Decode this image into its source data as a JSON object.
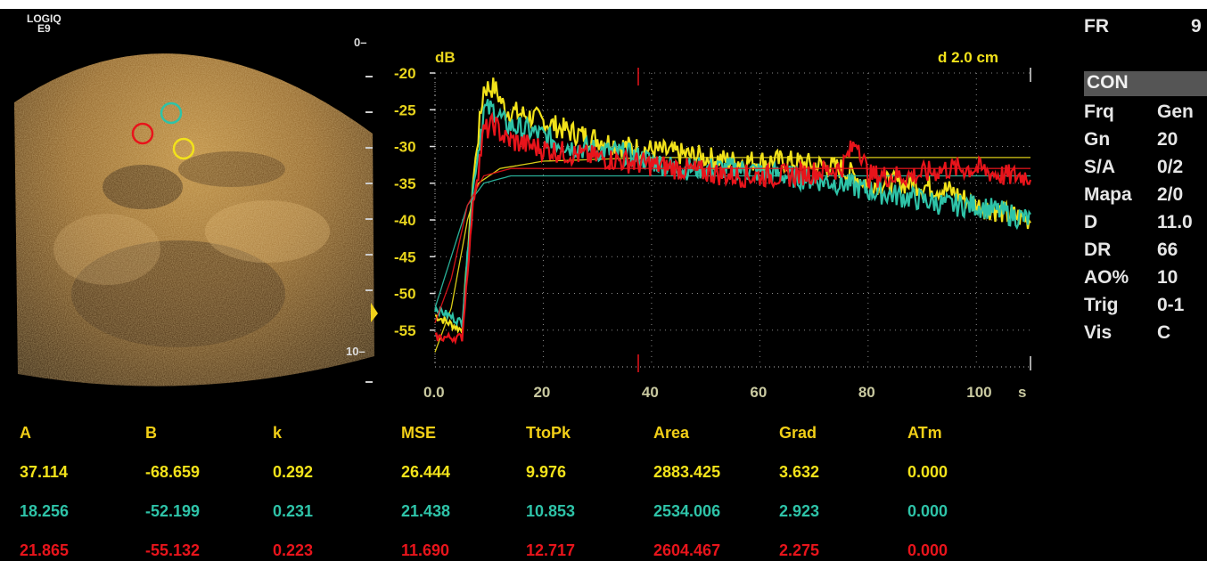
{
  "device": {
    "logo_line1": "LOGIQ",
    "logo_line2": "E9"
  },
  "image_depth": {
    "top_label": "0",
    "bottom_label": "10"
  },
  "roi_markers": [
    {
      "name": "roi-red",
      "color": "#e8141b"
    },
    {
      "name": "roi-cyan",
      "color": "#2ec3a8"
    },
    {
      "name": "roi-yellow",
      "color": "#f2e21a"
    }
  ],
  "chart_data": {
    "type": "line",
    "ylabel": "dB",
    "xlabel": "s",
    "annotation": "d 2.0 cm",
    "xlim": [
      0,
      110
    ],
    "ylim": [
      -60,
      -20
    ],
    "xticks": [
      "0.0",
      "20",
      "40",
      "60",
      "80",
      "100"
    ],
    "yticks": [
      "-20",
      "-25",
      "-30",
      "-35",
      "-40",
      "-45",
      "-50",
      "-55"
    ],
    "grid": true,
    "series": [
      {
        "color": "#f2e21a",
        "raw": [
          [
            0,
            -53
          ],
          [
            5,
            -55
          ],
          [
            7,
            -35
          ],
          [
            9,
            -22
          ],
          [
            11,
            -22
          ],
          [
            13,
            -25
          ],
          [
            18,
            -26
          ],
          [
            25,
            -28
          ],
          [
            35,
            -30
          ],
          [
            45,
            -31
          ],
          [
            55,
            -32
          ],
          [
            65,
            -32
          ],
          [
            75,
            -33
          ],
          [
            80,
            -35
          ],
          [
            88,
            -35
          ],
          [
            95,
            -36
          ],
          [
            100,
            -38
          ],
          [
            105,
            -39
          ],
          [
            110,
            -40
          ]
        ],
        "fit": [
          [
            0,
            -58
          ],
          [
            3,
            -52
          ],
          [
            6,
            -40
          ],
          [
            8,
            -35
          ],
          [
            12,
            -33
          ],
          [
            20,
            -32
          ],
          [
            40,
            -31.5
          ],
          [
            110,
            -31.5
          ]
        ]
      },
      {
        "color": "#2ec3a8",
        "raw": [
          [
            0,
            -52
          ],
          [
            5,
            -54
          ],
          [
            7,
            -36
          ],
          [
            9,
            -25
          ],
          [
            11,
            -25
          ],
          [
            13,
            -27
          ],
          [
            18,
            -28
          ],
          [
            25,
            -30
          ],
          [
            35,
            -31
          ],
          [
            45,
            -33
          ],
          [
            55,
            -33
          ],
          [
            65,
            -34
          ],
          [
            75,
            -35
          ],
          [
            80,
            -36
          ],
          [
            88,
            -37
          ],
          [
            95,
            -38
          ],
          [
            100,
            -38
          ],
          [
            105,
            -39
          ],
          [
            110,
            -40
          ]
        ],
        "fit": [
          [
            0,
            -52
          ],
          [
            3,
            -45
          ],
          [
            6,
            -38
          ],
          [
            9,
            -35
          ],
          [
            14,
            -34
          ],
          [
            20,
            -34
          ],
          [
            40,
            -34
          ],
          [
            110,
            -34
          ]
        ]
      },
      {
        "color": "#e8141b",
        "raw": [
          [
            0,
            -56
          ],
          [
            5,
            -56
          ],
          [
            7,
            -38
          ],
          [
            9,
            -28
          ],
          [
            11,
            -27
          ],
          [
            13,
            -29
          ],
          [
            18,
            -30
          ],
          [
            25,
            -31
          ],
          [
            35,
            -32
          ],
          [
            45,
            -33
          ],
          [
            55,
            -34
          ],
          [
            65,
            -34
          ],
          [
            75,
            -33
          ],
          [
            78,
            -29
          ],
          [
            80,
            -34
          ],
          [
            88,
            -34
          ],
          [
            95,
            -33
          ],
          [
            100,
            -33
          ],
          [
            105,
            -34
          ],
          [
            110,
            -34
          ]
        ],
        "fit": [
          [
            0,
            -54
          ],
          [
            3,
            -48
          ],
          [
            6,
            -38
          ],
          [
            9,
            -34
          ],
          [
            14,
            -33
          ],
          [
            20,
            -33
          ],
          [
            40,
            -33
          ],
          [
            110,
            -33
          ]
        ]
      }
    ]
  },
  "params": {
    "fr_label": "FR",
    "fr_value": "9",
    "mode": "CON",
    "rows": [
      {
        "label": "Frq",
        "value": "Gen"
      },
      {
        "label": "Gn",
        "value": "20"
      },
      {
        "label": "S/A",
        "value": "0/2"
      },
      {
        "label": "Mapa",
        "value": "2/0"
      },
      {
        "label": "D",
        "value": "11.0"
      },
      {
        "label": "DR",
        "value": "66"
      },
      {
        "label": "AO%",
        "value": "10"
      },
      {
        "label": "Trig",
        "value": "0-1"
      },
      {
        "label": "Vis",
        "value": "C"
      }
    ]
  },
  "results": {
    "headers": [
      "A",
      "B",
      "k",
      "MSE",
      "TtoPk",
      "Area",
      "Grad",
      "ATm"
    ],
    "rows": [
      {
        "color": "yellow",
        "values": [
          "37.114",
          "-68.659",
          "0.292",
          "26.444",
          "9.976",
          "2883.425",
          "3.632",
          "0.000"
        ]
      },
      {
        "color": "cyan",
        "values": [
          "18.256",
          "-52.199",
          "0.231",
          "21.438",
          "10.853",
          "2534.006",
          "2.923",
          "0.000"
        ]
      },
      {
        "color": "red",
        "values": [
          "21.865",
          "-55.132",
          "0.223",
          "11.690",
          "12.717",
          "2604.467",
          "2.275",
          "0.000"
        ]
      }
    ]
  }
}
